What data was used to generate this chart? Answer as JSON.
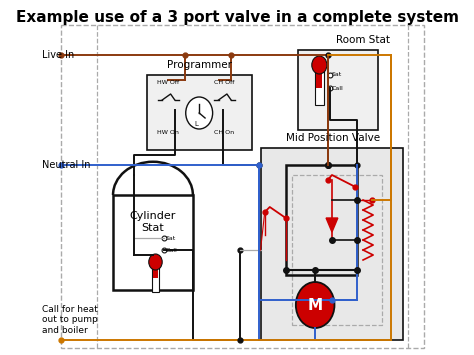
{
  "title": "Example use of a 3 port valve in a complete system",
  "title_fontsize": 11,
  "bg_color": "#ffffff",
  "dash_color": "#aaaaaa",
  "live_color": "#8B3A0F",
  "neutral_color": "#3060CC",
  "call_color": "#CC7700",
  "black_color": "#111111",
  "red_color": "#CC0000",
  "gray_color": "#aaaaaa",
  "live_in_label": "Live In",
  "neutral_in_label": "Neutral In",
  "call_label": "Call for heat\nout to pump\nand boiler",
  "programmer_label": "Programmer",
  "room_stat_label": "Room Stat",
  "cylinder_stat_label": "Cylinder\nStat",
  "mpv_label": "Mid Position Valve",
  "hw_off": "HW Off",
  "hw_on": "HW On",
  "ch_off": "CH Off",
  "ch_on": "CH On",
  "sat_label": "Sat",
  "call_term": "Call"
}
